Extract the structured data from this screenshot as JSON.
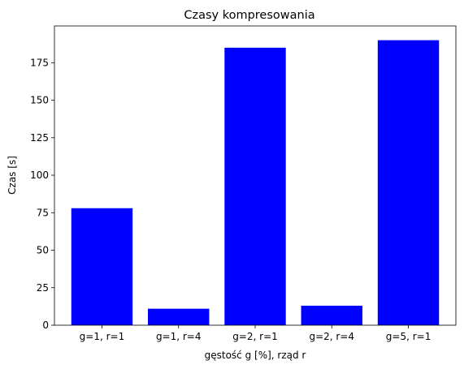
{
  "chart_data": {
    "type": "bar",
    "title": "Czasy kompresowania",
    "xlabel": "gęstość g [%], rząd r",
    "ylabel": "Czas [s]",
    "categories": [
      "g=1, r=1",
      "g=1, r=4",
      "g=2, r=1",
      "g=2, r=4",
      "g=5, r=1"
    ],
    "values": [
      78,
      11,
      185,
      13,
      190
    ],
    "ylim": [
      0,
      199.5
    ],
    "yticks": [
      0,
      25,
      50,
      75,
      100,
      125,
      150,
      175
    ],
    "grid": false,
    "bar_color": "#0000ff"
  }
}
